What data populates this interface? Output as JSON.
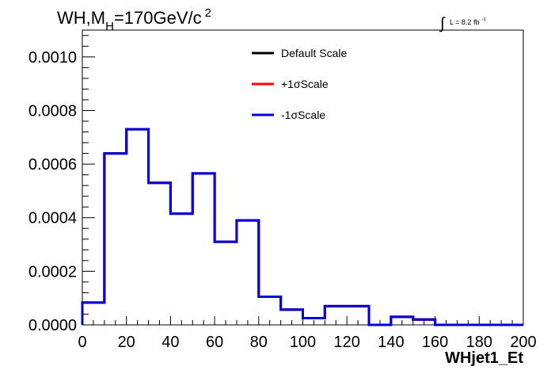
{
  "chart_data": {
    "type": "histogram",
    "title_parts": {
      "main": "WH,M",
      "subscript": "H",
      "rest": "=170GeV/c",
      "superscript": "2"
    },
    "lumi_label": {
      "integral": "∫",
      "text": "L = 8.2 fb",
      "superscript": "-1"
    },
    "xlabel": "WHjet1_Et",
    "ylabel": "",
    "xlim": [
      0,
      200
    ],
    "ylim": [
      0,
      0.0011
    ],
    "x_ticks": [
      "0",
      "20",
      "40",
      "60",
      "80",
      "100",
      "120",
      "140",
      "160",
      "180",
      "200"
    ],
    "y_ticks": [
      "0.0000",
      "0.0002",
      "0.0004",
      "0.0006",
      "0.0008",
      "0.0010"
    ],
    "bin_edges": [
      0,
      10,
      20,
      30,
      40,
      50,
      60,
      70,
      80,
      90,
      100,
      110,
      120,
      130,
      140,
      150,
      160,
      170,
      180,
      190,
      200
    ],
    "series": [
      {
        "name": "Default Scale",
        "color": "#000000",
        "values": [
          8.3e-05,
          0.00064,
          0.00073,
          0.00053,
          0.000415,
          0.000565,
          0.00031,
          0.00039,
          0.000105,
          5.7e-05,
          2.5e-05,
          7e-05,
          7e-05,
          0.0,
          3e-05,
          2e-05,
          0.0,
          0.0,
          0.0,
          0.0
        ]
      },
      {
        "name": "+1σScale",
        "color": "#ff0000",
        "values": [
          8.3e-05,
          0.00064,
          0.00073,
          0.00053,
          0.000415,
          0.000565,
          0.00031,
          0.00039,
          0.000105,
          5.7e-05,
          2.5e-05,
          7e-05,
          7e-05,
          0.0,
          3e-05,
          2e-05,
          0.0,
          0.0,
          0.0,
          0.0
        ]
      },
      {
        "name": "-1σScale",
        "color": "#0000dd",
        "values": [
          8.3e-05,
          0.00064,
          0.00073,
          0.00053,
          0.000415,
          0.000565,
          0.00031,
          0.00039,
          0.000105,
          5.7e-05,
          2.5e-05,
          7e-05,
          7e-05,
          0.0,
          3e-05,
          2e-05,
          0.0,
          0.0,
          0.0,
          0.0
        ]
      }
    ],
    "legend": [
      "Default Scale",
      "+1σScale",
      "-1σScale"
    ],
    "legend_position": "top-right",
    "grid": false
  }
}
